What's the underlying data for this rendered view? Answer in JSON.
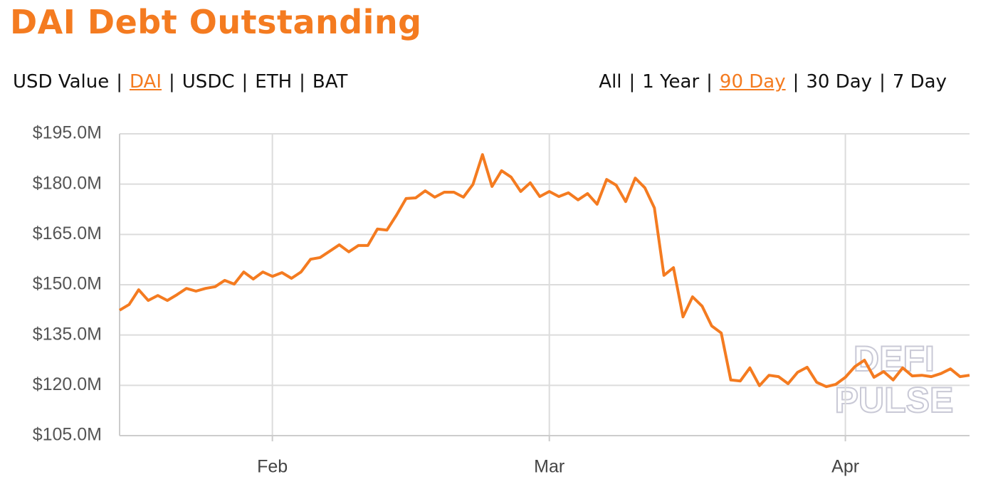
{
  "header": {
    "title": "DAI Debt Outstanding",
    "units": {
      "items": [
        "USD Value",
        "DAI",
        "USDC",
        "ETH",
        "BAT"
      ],
      "selected": 1
    },
    "ranges": {
      "items": [
        "All",
        "1 Year",
        "90 Day",
        "30 Day",
        "7 Day"
      ],
      "selected": 2
    },
    "separator": "|"
  },
  "chart_data": {
    "type": "line",
    "watermark": [
      "DEFI",
      "PULSE"
    ],
    "x": [
      0,
      1,
      2,
      3,
      4,
      5,
      6,
      7,
      8,
      9,
      10,
      11,
      12,
      13,
      14,
      15,
      16,
      17,
      18,
      19,
      20,
      21,
      22,
      23,
      24,
      25,
      26,
      27,
      28,
      29,
      30,
      31,
      32,
      33,
      34,
      35,
      36,
      37,
      38,
      39,
      40,
      41,
      42,
      43,
      44,
      45,
      46,
      47,
      48,
      49,
      50,
      51,
      52,
      53,
      54,
      55,
      56,
      57,
      58,
      59,
      60,
      61,
      62,
      63,
      64,
      65,
      66,
      67,
      68,
      69,
      70,
      71,
      72,
      73,
      74,
      75,
      76,
      77,
      78,
      79,
      80,
      81,
      82,
      83,
      84,
      85,
      86,
      87,
      88,
      89
    ],
    "series": [
      {
        "color": "#f47b20",
        "values": [
          142.4,
          144.1,
          148.5,
          145.3,
          146.8,
          145.3,
          147.0,
          148.9,
          148.1,
          148.9,
          149.4,
          151.3,
          150.2,
          153.8,
          151.7,
          153.8,
          152.5,
          153.6,
          151.9,
          153.8,
          157.6,
          158.1,
          160.0,
          161.9,
          159.8,
          161.7,
          161.7,
          166.6,
          166.3,
          170.8,
          175.7,
          175.9,
          178.0,
          176.1,
          177.6,
          177.6,
          176.1,
          179.9,
          188.8,
          179.3,
          184.0,
          182.1,
          177.8,
          180.4,
          176.3,
          177.8,
          176.3,
          177.4,
          175.3,
          177.2,
          174.0,
          181.4,
          179.7,
          174.8,
          181.8,
          178.9,
          172.9,
          152.8,
          155.1,
          140.4,
          146.4,
          143.6,
          137.7,
          135.6,
          121.6,
          121.3,
          125.2,
          119.9,
          123.0,
          122.6,
          120.5,
          123.9,
          125.4,
          120.9,
          119.6,
          120.3,
          122.4,
          125.6,
          127.5,
          122.4,
          124.1,
          121.6,
          125.2,
          122.8,
          123.0,
          122.6,
          123.5,
          124.9,
          122.6,
          123.0
        ]
      }
    ],
    "xlim": [
      0,
      89
    ],
    "xticks": [
      {
        "value": 16,
        "label": "Feb"
      },
      {
        "value": 45,
        "label": "Mar"
      },
      {
        "value": 76,
        "label": "Apr"
      }
    ],
    "ylim": [
      105,
      195
    ],
    "yticks": [
      {
        "value": 105,
        "label": "$105.0M"
      },
      {
        "value": 120,
        "label": "$120.0M"
      },
      {
        "value": 135,
        "label": "$135.0M"
      },
      {
        "value": 150,
        "label": "$150.0M"
      },
      {
        "value": 165,
        "label": "$165.0M"
      },
      {
        "value": 180,
        "label": "$180.0M"
      },
      {
        "value": 195,
        "label": "$195.0M"
      }
    ],
    "grid": true
  }
}
